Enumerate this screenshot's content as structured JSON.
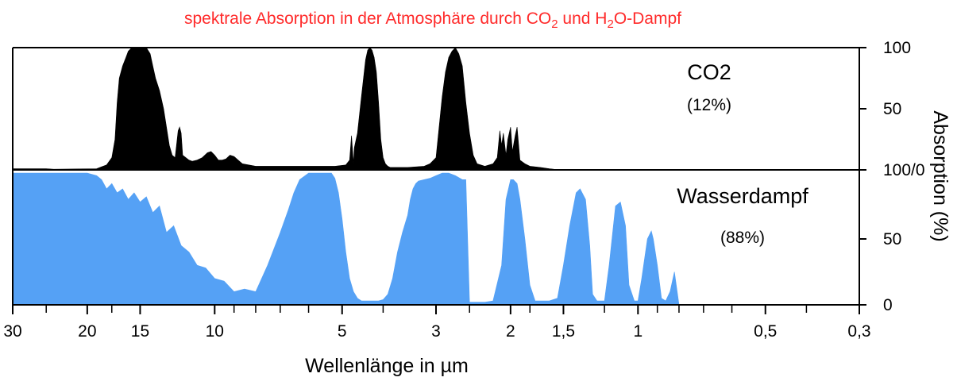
{
  "title": {
    "prefix": "spektrale Absorption in der Atmosphäre durch CO",
    "sub1": "2",
    "middle": " und H",
    "sub2": "2",
    "suffix": "O-Dampf"
  },
  "colors": {
    "title": "#ff2a2a",
    "co2": "#000000",
    "water": "#55a1f5",
    "axis": "#000000"
  },
  "chart_data": [
    {
      "type": "area",
      "name": "co2-panel",
      "xscale": "log",
      "x_unit": "µm",
      "xlim": [
        30,
        0.3
      ],
      "ylim": [
        0,
        100
      ],
      "ylabel": "Absorption (%)",
      "yticks": [
        {
          "value": 0,
          "label": "100/0"
        },
        {
          "value": 50,
          "label": "50"
        },
        {
          "value": 100,
          "label": "100"
        }
      ],
      "series": [
        {
          "name": "CO2",
          "share": "(12%)",
          "x": [
            30,
            25,
            24,
            19,
            18,
            17.5,
            17.2,
            17,
            16.8,
            16.5,
            16.2,
            16,
            15.7,
            15.5,
            15,
            14.5,
            14.2,
            14,
            13.8,
            13.5,
            13.2,
            13,
            12.8,
            12.6,
            12.4,
            12.2,
            12.1,
            12,
            11.9,
            11.7,
            11.5,
            11.3,
            11,
            10.7,
            10.4,
            10.2,
            10,
            9.8,
            9.6,
            9.4,
            9.2,
            9,
            8.8,
            8.6,
            8,
            7,
            6,
            5.2,
            4.9,
            4.8,
            4.75,
            4.7,
            4.68,
            4.6,
            4.5,
            4.4,
            4.35,
            4.3,
            4.25,
            4.2,
            4.15,
            4.1,
            4.05,
            4.0,
            3.95,
            3.9,
            3.85,
            3.8,
            3.5,
            3.2,
            3.1,
            3.0,
            2.95,
            2.9,
            2.85,
            2.8,
            2.75,
            2.7,
            2.65,
            2.6,
            2.55,
            2.5,
            2.45,
            2.4,
            2.3,
            2.2,
            2.15,
            2.12,
            2.1,
            2.08,
            2.05,
            2.03,
            2.0,
            1.98,
            1.95,
            1.93,
            1.9,
            1.85,
            1.8,
            1.7,
            1.62,
            1.58,
            1.5
          ],
          "y": [
            1,
            1,
            0.5,
            1,
            4,
            10,
            25,
            55,
            75,
            85,
            92,
            97,
            100,
            100,
            100,
            100,
            95,
            85,
            75,
            65,
            50,
            35,
            20,
            12,
            10,
            32,
            35,
            30,
            12,
            10,
            8,
            7,
            8,
            10,
            14,
            15,
            12,
            8,
            8,
            9,
            12,
            11,
            8,
            5,
            3,
            3,
            3,
            3,
            4,
            8,
            28,
            5,
            18,
            30,
            60,
            90,
            98,
            100,
            98,
            92,
            80,
            55,
            25,
            10,
            5,
            3,
            2,
            2,
            2,
            3,
            5,
            10,
            35,
            60,
            80,
            92,
            97,
            100,
            95,
            85,
            55,
            30,
            12,
            5,
            3,
            5,
            10,
            32,
            20,
            30,
            12,
            25,
            35,
            15,
            28,
            35,
            8,
            5,
            3,
            2,
            1,
            0.5,
            0
          ]
        }
      ]
    },
    {
      "type": "area",
      "name": "water-panel",
      "xscale": "log",
      "x_unit": "µm",
      "xlim": [
        30,
        0.3
      ],
      "ylim": [
        0,
        100
      ],
      "ylabel": "Absorption (%)",
      "xlabel_prefix": "Wellenlänge in ",
      "xlabel_unit": "µm",
      "xticks": [
        {
          "value": 30,
          "label": "30"
        },
        {
          "value": 20,
          "label": "20"
        },
        {
          "value": 15,
          "label": "15"
        },
        {
          "value": 10,
          "label": "10"
        },
        {
          "value": 5,
          "label": "5"
        },
        {
          "value": 3,
          "label": "3"
        },
        {
          "value": 2,
          "label": "2"
        },
        {
          "value": 1.5,
          "label": "1,5"
        },
        {
          "value": 1,
          "label": "1"
        },
        {
          "value": 0.5,
          "label": "0,5"
        },
        {
          "value": 0.3,
          "label": "0,3"
        }
      ],
      "minor_xticks": [
        25,
        17.5,
        9,
        8,
        7,
        6,
        4,
        2.5,
        1.8,
        1.2,
        0.9,
        0.8,
        0.7,
        0.6,
        0.4
      ],
      "yticks": [
        {
          "value": 0,
          "label": "0"
        },
        {
          "value": 50,
          "label": "50"
        }
      ],
      "series": [
        {
          "name": "Wasserdampf",
          "share": "(88%)",
          "x": [
            30,
            25,
            20,
            19,
            18.5,
            18,
            17.5,
            17,
            16.5,
            16,
            15.5,
            15,
            14.5,
            14,
            13.5,
            13,
            12.5,
            12,
            11.5,
            11,
            10.5,
            10,
            9.5,
            9,
            8.5,
            8,
            7.5,
            7,
            6.7,
            6.5,
            6.3,
            6.0,
            5.8,
            5.5,
            5.3,
            5.2,
            5.1,
            5.0,
            4.9,
            4.8,
            4.7,
            4.6,
            4.5,
            4.4,
            4.3,
            4.2,
            4.1,
            4.0,
            3.9,
            3.8,
            3.7,
            3.6,
            3.5,
            3.45,
            3.4,
            3.35,
            3.3,
            3.2,
            3.1,
            3.0,
            2.9,
            2.8,
            2.7,
            2.6,
            2.55,
            2.5,
            2.45,
            2.4,
            2.3,
            2.2,
            2.1,
            2.05,
            2.0,
            1.97,
            1.93,
            1.9,
            1.85,
            1.8,
            1.75,
            1.7,
            1.62,
            1.55,
            1.5,
            1.45,
            1.4,
            1.37,
            1.33,
            1.3,
            1.28,
            1.25,
            1.2,
            1.17,
            1.13,
            1.1,
            1.07,
            1.05,
            1.02,
            1.0,
            0.98,
            0.95,
            0.93,
            0.92,
            0.9,
            0.88,
            0.86,
            0.84,
            0.82,
            0.8,
            0.79,
            0.78,
            0.77
          ],
          "y": [
            100,
            100,
            100,
            98,
            95,
            88,
            92,
            85,
            88,
            80,
            85,
            78,
            82,
            70,
            75,
            55,
            60,
            45,
            40,
            30,
            28,
            20,
            18,
            10,
            12,
            10,
            30,
            55,
            72,
            85,
            95,
            100,
            100,
            100,
            100,
            96,
            85,
            65,
            40,
            20,
            10,
            5,
            3,
            3,
            3,
            3,
            3,
            4,
            8,
            20,
            40,
            55,
            68,
            80,
            88,
            92,
            94,
            95,
            96,
            98,
            100,
            100,
            98,
            95,
            95,
            2,
            2,
            2,
            2,
            3,
            30,
            80,
            95,
            95,
            92,
            80,
            50,
            15,
            3,
            3,
            3,
            5,
            30,
            60,
            85,
            88,
            80,
            45,
            8,
            3,
            3,
            30,
            75,
            78,
            60,
            15,
            3,
            3,
            20,
            50,
            56,
            50,
            30,
            5,
            3,
            10,
            25,
            0,
            0,
            0,
            0
          ]
        }
      ]
    }
  ]
}
